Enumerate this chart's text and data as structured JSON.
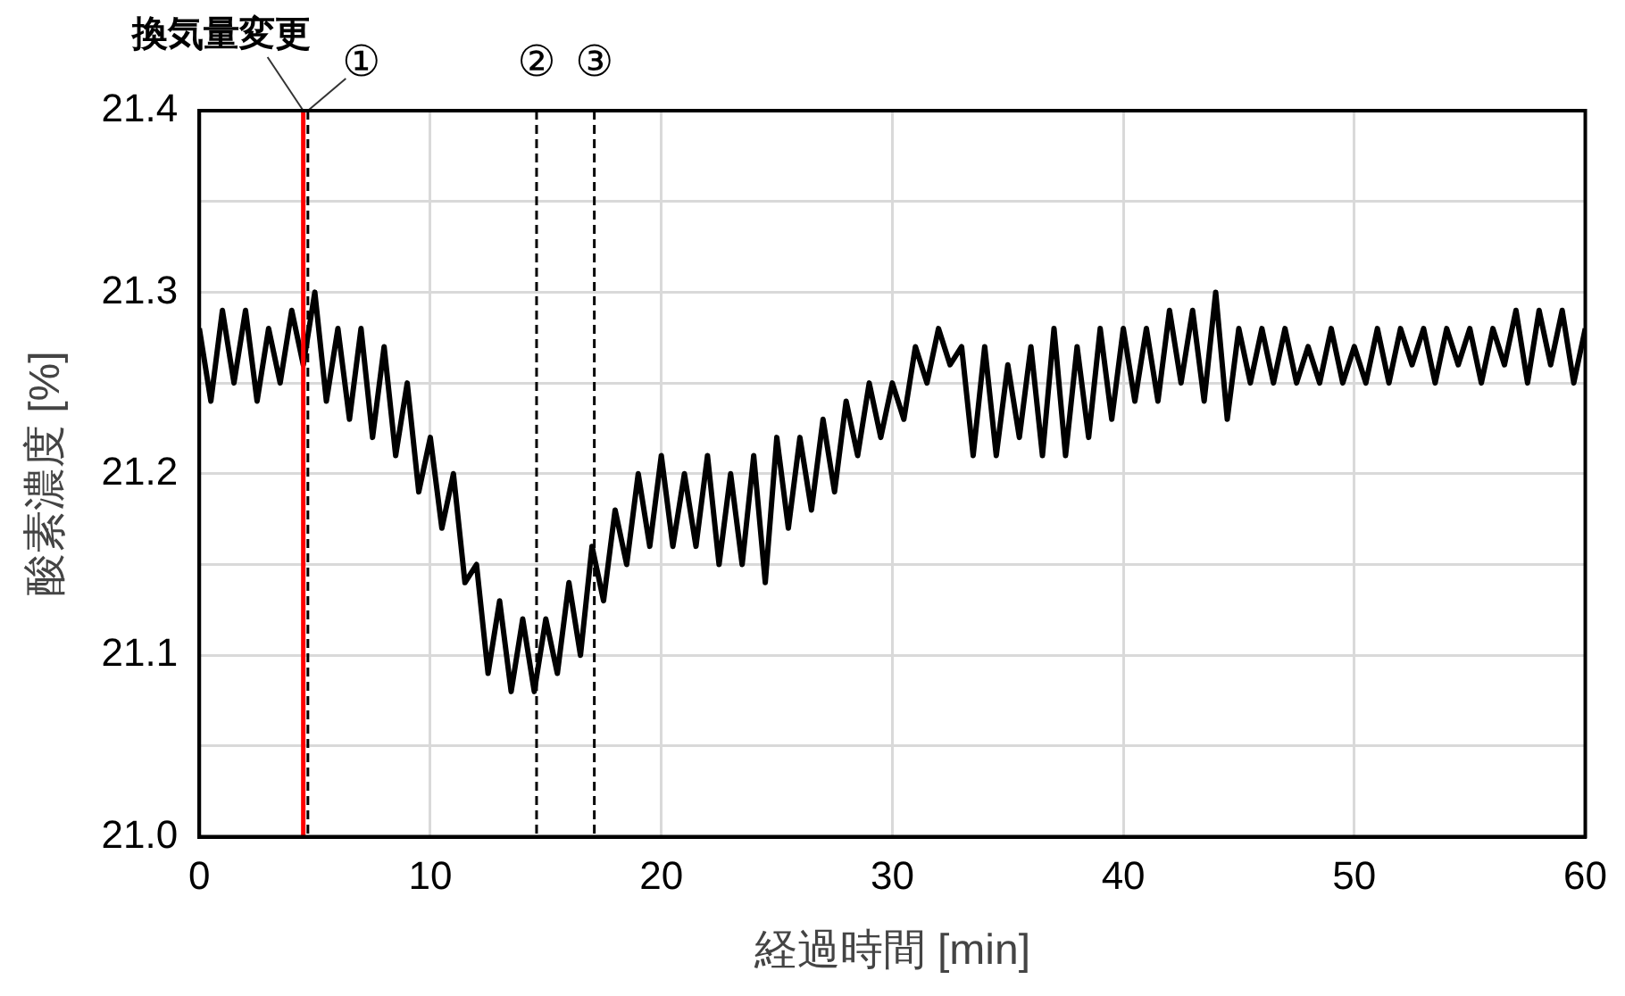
{
  "chart_data": {
    "type": "line",
    "xlabel": "経過時間 [min]",
    "ylabel": "酸素濃度 [%]",
    "x": [
      0,
      0.5,
      1,
      1.5,
      2,
      2.5,
      3,
      3.5,
      4,
      4.5,
      5,
      5.5,
      6,
      6.5,
      7,
      7.5,
      8,
      8.5,
      9,
      9.5,
      10,
      10.5,
      11,
      11.5,
      12,
      12.5,
      13,
      13.5,
      14,
      14.5,
      15,
      15.5,
      16,
      16.5,
      17,
      17.5,
      18,
      18.5,
      19,
      19.5,
      20,
      20.5,
      21,
      21.5,
      22,
      22.5,
      23,
      23.5,
      24,
      24.5,
      25,
      25.5,
      26,
      26.5,
      27,
      27.5,
      28,
      28.5,
      29,
      29.5,
      30,
      30.5,
      31,
      31.5,
      32,
      32.5,
      33,
      33.5,
      34,
      34.5,
      35,
      35.5,
      36,
      36.5,
      37,
      37.5,
      38,
      38.5,
      39,
      39.5,
      40,
      40.5,
      41,
      41.5,
      42,
      42.5,
      43,
      43.5,
      44,
      44.5,
      45,
      45.5,
      46,
      46.5,
      47,
      47.5,
      48,
      48.5,
      49,
      49.5,
      50,
      50.5,
      51,
      51.5,
      52,
      52.5,
      53,
      53.5,
      54,
      54.5,
      55,
      55.5,
      56,
      56.5,
      57,
      57.5,
      58,
      58.5,
      59,
      59.5,
      60
    ],
    "series": [
      {
        "color": "#000000",
        "values": [
          21.28,
          21.24,
          21.29,
          21.25,
          21.29,
          21.24,
          21.28,
          21.25,
          21.29,
          21.26,
          21.3,
          21.24,
          21.28,
          21.23,
          21.28,
          21.22,
          21.27,
          21.21,
          21.25,
          21.19,
          21.22,
          21.17,
          21.2,
          21.14,
          21.15,
          21.09,
          21.13,
          21.08,
          21.12,
          21.08,
          21.12,
          21.09,
          21.14,
          21.1,
          21.16,
          21.13,
          21.18,
          21.15,
          21.2,
          21.16,
          21.21,
          21.16,
          21.2,
          21.16,
          21.21,
          21.15,
          21.2,
          21.15,
          21.21,
          21.14,
          21.22,
          21.17,
          21.22,
          21.18,
          21.23,
          21.19,
          21.24,
          21.21,
          21.25,
          21.22,
          21.25,
          21.23,
          21.27,
          21.25,
          21.28,
          21.26,
          21.27,
          21.21,
          21.27,
          21.21,
          21.26,
          21.22,
          21.27,
          21.21,
          21.28,
          21.21,
          21.27,
          21.22,
          21.28,
          21.23,
          21.28,
          21.24,
          21.28,
          21.24,
          21.29,
          21.25,
          21.29,
          21.24,
          21.3,
          21.23,
          21.28,
          21.25,
          21.28,
          21.25,
          21.28,
          21.25,
          21.27,
          21.25,
          21.28,
          21.25,
          21.27,
          21.25,
          21.28,
          21.25,
          21.28,
          21.26,
          21.28,
          21.25,
          21.28,
          21.26,
          21.28,
          21.25,
          21.28,
          21.26,
          21.29,
          21.25,
          21.29,
          21.26,
          21.29,
          21.25,
          21.28
        ]
      }
    ],
    "xlim": [
      0,
      60
    ],
    "xticks": [
      0,
      10,
      20,
      30,
      40,
      50,
      60
    ],
    "ylim": [
      21.0,
      21.4
    ],
    "yticks": [
      {
        "value": 21.0,
        "label": "21.0"
      },
      {
        "value": 21.05,
        "label": null
      },
      {
        "value": 21.1,
        "label": "21.1"
      },
      {
        "value": 21.15,
        "label": null
      },
      {
        "value": 21.2,
        "label": "21.2"
      },
      {
        "value": 21.25,
        "label": null
      },
      {
        "value": 21.3,
        "label": "21.3"
      },
      {
        "value": 21.35,
        "label": null
      },
      {
        "value": 21.4,
        "label": "21.4"
      }
    ],
    "grid": true,
    "legend": false,
    "marker": "none",
    "line_style": "solid",
    "ref_lines": [
      {
        "axis": "x",
        "value": 4.5,
        "label": "換気量変更",
        "color": "#ff0000",
        "line_style": "solid"
      },
      {
        "axis": "x",
        "value": 4.7,
        "label": "①",
        "color": "#000000",
        "line_style": "dashed"
      },
      {
        "axis": "x",
        "value": 14.6,
        "label": "②",
        "color": "#000000",
        "line_style": "dashed"
      },
      {
        "axis": "x",
        "value": 17.1,
        "label": "③",
        "color": "#000000",
        "line_style": "dashed"
      }
    ]
  }
}
